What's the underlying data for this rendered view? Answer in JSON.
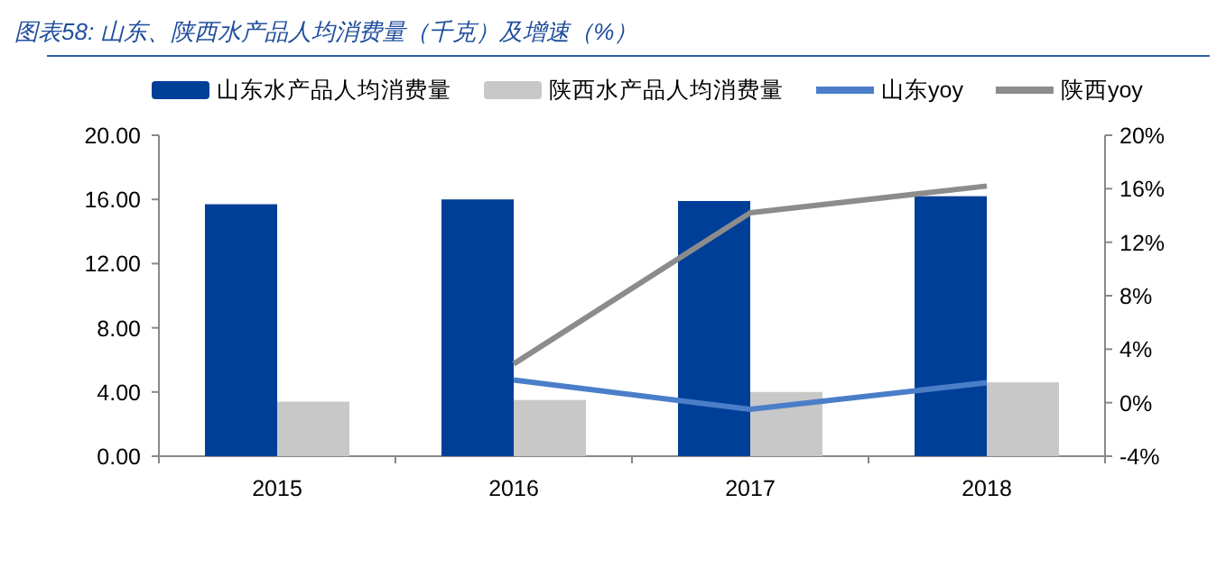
{
  "chart_data": {
    "type": "bar",
    "title": "图表58: 山东、陕西水产品人均消费量（千克）及增速（%）",
    "categories": [
      "2015",
      "2016",
      "2017",
      "2018"
    ],
    "series": [
      {
        "name": "山东水产品人均消费量",
        "color": "#003f98",
        "values": [
          15.7,
          16.0,
          15.9,
          16.2
        ]
      },
      {
        "name": "陕西水产品人均消费量",
        "color": "#c8c8c8",
        "values": [
          3.4,
          3.5,
          4.0,
          4.6
        ]
      },
      {
        "name": "山东yoy",
        "type": "line",
        "axis": "y2",
        "color": "#4a7ec8",
        "values": [
          null,
          1.7,
          -0.5,
          1.5
        ]
      },
      {
        "name": "陕西yoy",
        "type": "line",
        "axis": "y2",
        "color": "#8c8c8c",
        "values": [
          null,
          2.9,
          14.2,
          16.2
        ]
      }
    ],
    "ylim": [
      0,
      20
    ],
    "yticks": [
      {
        "value": 0,
        "label": "0.00"
      },
      {
        "value": 4,
        "label": "4.00"
      },
      {
        "value": 8,
        "label": "8.00"
      },
      {
        "value": 12,
        "label": "12.00"
      },
      {
        "value": 16,
        "label": "16.00"
      },
      {
        "value": 20,
        "label": "20.00"
      }
    ],
    "y2lim": [
      -4,
      20
    ],
    "y2ticks": [
      {
        "value": -4,
        "label": "-4%"
      },
      {
        "value": 0,
        "label": "0%"
      },
      {
        "value": 4,
        "label": "4%"
      },
      {
        "value": 8,
        "label": "8%"
      },
      {
        "value": 12,
        "label": "12%"
      },
      {
        "value": 16,
        "label": "16%"
      },
      {
        "value": 20,
        "label": "20%"
      }
    ],
    "grid": false,
    "legend": "top"
  }
}
